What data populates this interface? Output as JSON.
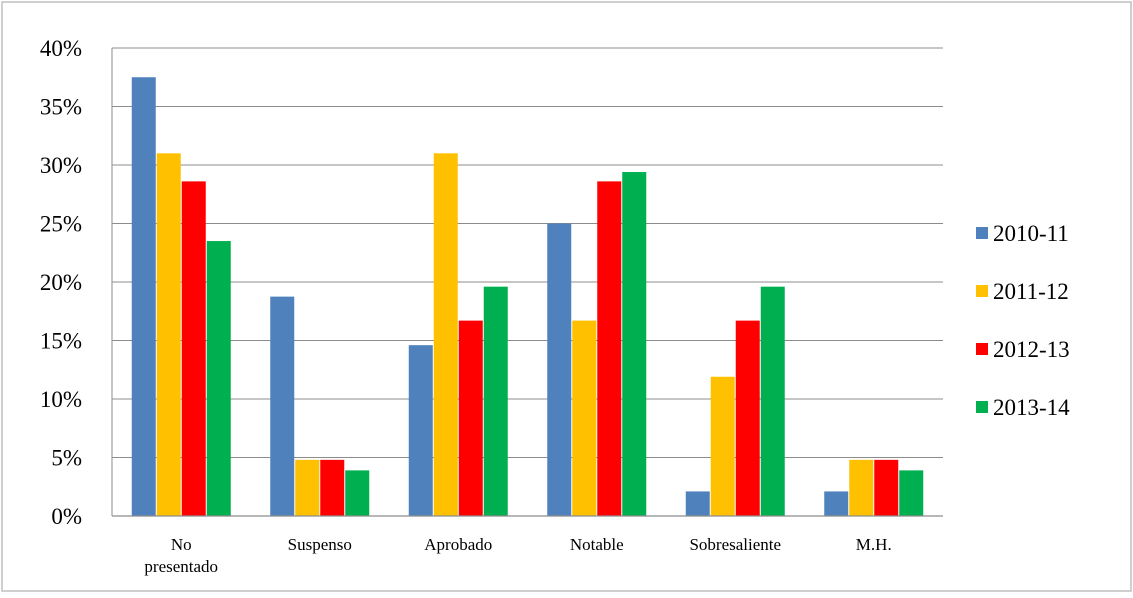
{
  "chart_data": {
    "type": "bar",
    "title": "",
    "xlabel": "",
    "ylabel": "",
    "categories": [
      "No presentado",
      "Suspenso",
      "Aprobado",
      "Notable",
      "Sobresaliente",
      "M.H."
    ],
    "category_lines": [
      [
        "No",
        "presentado"
      ],
      [
        "Suspenso"
      ],
      [
        "Aprobado"
      ],
      [
        "Notable"
      ],
      [
        "Sobresaliente"
      ],
      [
        "M.H."
      ]
    ],
    "series": [
      {
        "name": "2010-11",
        "color": "#4f81bd",
        "values": [
          37.5,
          18.75,
          14.6,
          25.0,
          2.1,
          2.1
        ]
      },
      {
        "name": "2011-12",
        "color": "#ffc000",
        "values": [
          31.0,
          4.8,
          31.0,
          16.7,
          11.9,
          4.8
        ]
      },
      {
        "name": "2012-13",
        "color": "#ff0000",
        "values": [
          28.6,
          4.8,
          16.7,
          28.6,
          16.7,
          4.8
        ]
      },
      {
        "name": "2013-14",
        "color": "#00b050",
        "values": [
          23.5,
          3.9,
          19.6,
          29.4,
          19.6,
          3.9
        ]
      }
    ],
    "ylim": [
      0,
      40
    ],
    "yticks": [
      0,
      5,
      10,
      15,
      20,
      25,
      30,
      35,
      40
    ],
    "ytick_labels": [
      "0%",
      "5%",
      "10%",
      "15%",
      "20%",
      "25%",
      "30%",
      "35%",
      "40%"
    ],
    "grid": true,
    "legend_position": "right"
  }
}
